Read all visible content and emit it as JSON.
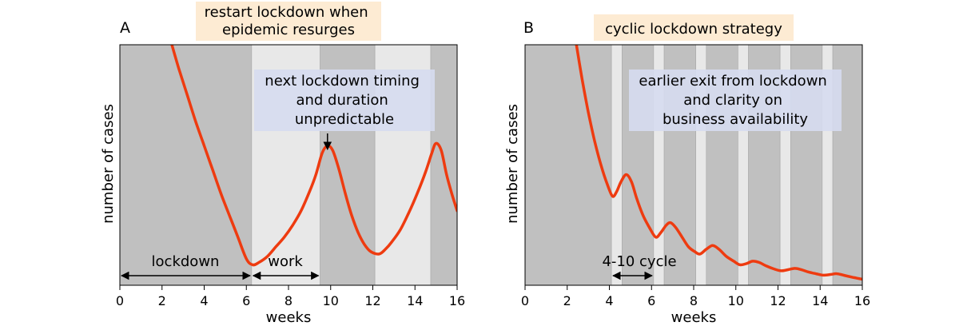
{
  "chart_data": [
    {
      "type": "line",
      "panel_label": "A",
      "title": "restart lockdown when\nepidemic resurges",
      "xlabel": "weeks",
      "ylabel": "number of cases",
      "xlim": [
        0,
        16
      ],
      "ylim": [
        0,
        1
      ],
      "x_ticks": [
        0,
        2,
        4,
        6,
        8,
        10,
        12,
        14,
        16
      ],
      "shaded_periods": [
        {
          "start": 0,
          "end": 6.25,
          "phase": "lockdown"
        },
        {
          "start": 6.25,
          "end": 9.5,
          "phase": "work"
        },
        {
          "start": 9.5,
          "end": 12.1,
          "phase": "lockdown"
        },
        {
          "start": 12.1,
          "end": 14.75,
          "phase": "work"
        },
        {
          "start": 14.75,
          "end": 16,
          "phase": "lockdown"
        }
      ],
      "series": [
        {
          "name": "cases",
          "color": "#ee3b10",
          "x": [
            2.4,
            2.8,
            3.2,
            3.6,
            4.0,
            4.4,
            4.8,
            5.2,
            5.6,
            6.0,
            6.3,
            6.6,
            7.0,
            7.4,
            7.8,
            8.2,
            8.6,
            9.0,
            9.3,
            9.6,
            9.85,
            10.1,
            10.4,
            10.7,
            11.0,
            11.3,
            11.6,
            11.9,
            12.3,
            12.6,
            12.9,
            13.3,
            13.7,
            14.1,
            14.5,
            14.8,
            15.0,
            15.25,
            15.5,
            15.75,
            16.0
          ],
          "values": [
            1.02,
            0.9,
            0.79,
            0.68,
            0.58,
            0.48,
            0.38,
            0.29,
            0.2,
            0.11,
            0.085,
            0.095,
            0.12,
            0.16,
            0.2,
            0.25,
            0.31,
            0.39,
            0.46,
            0.55,
            0.58,
            0.56,
            0.48,
            0.38,
            0.29,
            0.22,
            0.17,
            0.14,
            0.13,
            0.15,
            0.18,
            0.23,
            0.3,
            0.38,
            0.47,
            0.55,
            0.59,
            0.56,
            0.46,
            0.38,
            0.31
          ]
        }
      ],
      "annotations": {
        "peak_note": "next lockdown timing\nand duration\nunpredictable",
        "peak_arrow_x": 9.85,
        "lockdown_label": "lockdown",
        "lockdown_range": [
          0,
          6.25
        ],
        "work_label": "work",
        "work_range": [
          6.25,
          9.5
        ]
      }
    },
    {
      "type": "line",
      "panel_label": "B",
      "title": "cyclic lockdown strategy",
      "xlabel": "weeks",
      "ylabel": "number of cases",
      "xlim": [
        0,
        16
      ],
      "ylim": [
        0,
        1
      ],
      "x_ticks": [
        0,
        2,
        4,
        6,
        8,
        10,
        12,
        14,
        16
      ],
      "shaded_periods": [
        {
          "start": 0,
          "end": 4.1,
          "phase": "lockdown"
        },
        {
          "start": 4.1,
          "end": 4.6,
          "phase": "work"
        },
        {
          "start": 4.6,
          "end": 6.1,
          "phase": "lockdown"
        },
        {
          "start": 6.1,
          "end": 6.6,
          "phase": "work"
        },
        {
          "start": 6.6,
          "end": 8.1,
          "phase": "lockdown"
        },
        {
          "start": 8.1,
          "end": 8.6,
          "phase": "work"
        },
        {
          "start": 8.6,
          "end": 10.1,
          "phase": "lockdown"
        },
        {
          "start": 10.1,
          "end": 10.6,
          "phase": "work"
        },
        {
          "start": 10.6,
          "end": 12.1,
          "phase": "lockdown"
        },
        {
          "start": 12.1,
          "end": 12.6,
          "phase": "work"
        },
        {
          "start": 12.6,
          "end": 14.1,
          "phase": "lockdown"
        },
        {
          "start": 14.1,
          "end": 14.6,
          "phase": "work"
        },
        {
          "start": 14.6,
          "end": 16,
          "phase": "lockdown"
        }
      ],
      "series": [
        {
          "name": "cases",
          "color": "#ee3b10",
          "x": [
            2.4,
            2.7,
            3.0,
            3.3,
            3.6,
            3.9,
            4.15,
            4.35,
            4.55,
            4.8,
            5.05,
            5.3,
            5.6,
            5.9,
            6.2,
            6.45,
            6.7,
            6.9,
            7.15,
            7.45,
            7.75,
            8.05,
            8.3,
            8.6,
            8.9,
            9.2,
            9.55,
            9.9,
            10.2,
            10.5,
            10.8,
            11.1,
            11.45,
            11.8,
            12.15,
            12.5,
            12.8,
            13.1,
            13.45,
            13.8,
            14.15,
            14.5,
            14.8,
            15.2,
            15.6,
            16.0
          ],
          "values": [
            1.02,
            0.86,
            0.72,
            0.6,
            0.5,
            0.42,
            0.37,
            0.39,
            0.43,
            0.46,
            0.43,
            0.36,
            0.29,
            0.24,
            0.2,
            0.22,
            0.25,
            0.26,
            0.24,
            0.2,
            0.16,
            0.14,
            0.13,
            0.15,
            0.165,
            0.15,
            0.12,
            0.1,
            0.085,
            0.09,
            0.1,
            0.095,
            0.08,
            0.068,
            0.06,
            0.065,
            0.07,
            0.065,
            0.055,
            0.048,
            0.042,
            0.045,
            0.048,
            0.04,
            0.032,
            0.025
          ]
        }
      ],
      "annotations": {
        "note": "earlier exit from lockdown\nand clarity on\nbusiness availability",
        "cycle_label": "4-10 cycle",
        "cycle_range": [
          4.1,
          6.1
        ]
      }
    }
  ],
  "colors": {
    "lockdown_band": "#c0c0c0",
    "work_band": "#e8e8e8",
    "curve": "#ee3b10",
    "header_box": "#fdebd3",
    "note_box": "#d6dcef"
  }
}
